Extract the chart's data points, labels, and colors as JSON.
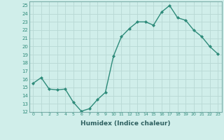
{
  "x": [
    0,
    1,
    2,
    3,
    4,
    5,
    6,
    7,
    8,
    9,
    10,
    11,
    12,
    13,
    14,
    15,
    16,
    17,
    18,
    19,
    20,
    21,
    22,
    23
  ],
  "y": [
    15.5,
    16.2,
    14.8,
    14.7,
    14.8,
    13.2,
    12.1,
    12.4,
    13.5,
    14.4,
    18.8,
    21.2,
    22.2,
    23.0,
    23.0,
    22.6,
    24.2,
    25.0,
    23.5,
    23.2,
    22.0,
    21.2,
    20.0,
    19.1
  ],
  "line_color": "#2e8b7a",
  "marker": "D",
  "markersize": 2,
  "linewidth": 1.0,
  "xlabel": "Humidex (Indice chaleur)",
  "xlim": [
    -0.5,
    23.5
  ],
  "ylim": [
    12,
    25.5
  ],
  "yticks": [
    12,
    13,
    14,
    15,
    16,
    17,
    18,
    19,
    20,
    21,
    22,
    23,
    24,
    25
  ],
  "xticks": [
    0,
    1,
    2,
    3,
    4,
    5,
    6,
    7,
    8,
    9,
    10,
    11,
    12,
    13,
    14,
    15,
    16,
    17,
    18,
    19,
    20,
    21,
    22,
    23
  ],
  "bg_color": "#d0eeea",
  "grid_color": "#b8d8d4",
  "spine_color": "#7aada8",
  "tick_color": "#2e8b7a",
  "label_color": "#2e6060"
}
